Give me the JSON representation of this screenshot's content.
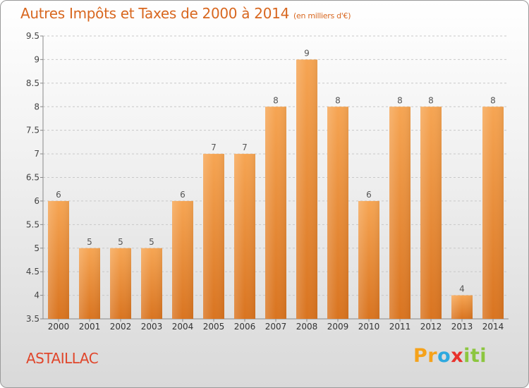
{
  "chart_data": {
    "type": "bar",
    "title": "Autres Impôts et Taxes de 2000 à 2014",
    "subtitle": "(en milliers d'€)",
    "categories": [
      "2000",
      "2001",
      "2002",
      "2003",
      "2004",
      "2005",
      "2006",
      "2007",
      "2008",
      "2009",
      "2010",
      "2011",
      "2012",
      "2013",
      "2014"
    ],
    "values": [
      6,
      5,
      5,
      5,
      6,
      7,
      7,
      8,
      9,
      8,
      6,
      8,
      8,
      4,
      8
    ],
    "ylim": [
      3.5,
      9.5
    ],
    "yticks": [
      "3.5",
      "4",
      "4.5",
      "5",
      "5.5",
      "6",
      "6.5",
      "7",
      "7.5",
      "8",
      "8.5",
      "9",
      "9.5"
    ],
    "ytick_values": [
      3.5,
      4,
      4.5,
      5,
      5.5,
      6,
      6.5,
      7,
      7.5,
      8,
      8.5,
      9,
      9.5
    ],
    "grid": "horizontal-dashed",
    "bar_color_top": "#f6a553",
    "bar_color_bottom": "#d97420"
  },
  "footer": {
    "commune": "ASTAILLAC",
    "logo": [
      "P",
      "r",
      "o",
      "x",
      "i",
      "t",
      "i"
    ],
    "logo_colors": [
      "#f5a21b",
      "#f5a21b",
      "#2ea9df",
      "#e8322c",
      "#8cc63f",
      "#8cc63f",
      "#8cc63f"
    ]
  }
}
